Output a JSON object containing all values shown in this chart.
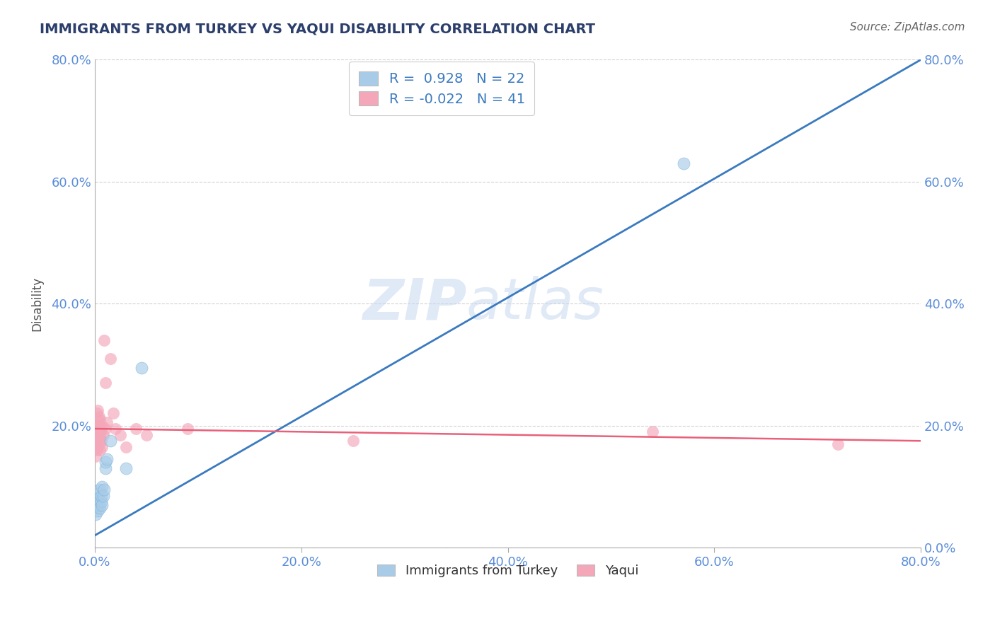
{
  "title": "IMMIGRANTS FROM TURKEY VS YAQUI DISABILITY CORRELATION CHART",
  "source_text": "Source: ZipAtlas.com",
  "xlabel": "",
  "ylabel": "Disability",
  "xlim": [
    0.0,
    0.8
  ],
  "ylim": [
    0.0,
    0.8
  ],
  "xticks": [
    0.0,
    0.2,
    0.4,
    0.6,
    0.8
  ],
  "yticks": [
    0.0,
    0.2,
    0.4,
    0.6,
    0.8
  ],
  "xticklabels": [
    "0.0%",
    "20.0%",
    "40.0%",
    "60.0%",
    "80.0%"
  ],
  "yticklabels": [
    "0.0%",
    "20.0%",
    "40.0%",
    "60.0%",
    "80.0%"
  ],
  "blue_R": 0.928,
  "blue_N": 22,
  "pink_R": -0.022,
  "pink_N": 41,
  "blue_color": "#a8cce8",
  "pink_color": "#f4a7b9",
  "blue_line_color": "#3a7abf",
  "pink_line_color": "#e8607a",
  "legend_blue_label": "Immigrants from Turkey",
  "legend_pink_label": "Yaqui",
  "watermark_zip": "ZIP",
  "watermark_atlas": "atlas",
  "blue_line_x": [
    0.0,
    0.8
  ],
  "blue_line_y": [
    0.02,
    0.8
  ],
  "pink_line_x": [
    0.0,
    0.8
  ],
  "pink_line_y": [
    0.195,
    0.175
  ],
  "blue_scatter_x": [
    0.001,
    0.002,
    0.002,
    0.003,
    0.003,
    0.004,
    0.004,
    0.005,
    0.005,
    0.006,
    0.006,
    0.007,
    0.007,
    0.008,
    0.009,
    0.01,
    0.01,
    0.012,
    0.015,
    0.03,
    0.045,
    0.57
  ],
  "blue_scatter_y": [
    0.055,
    0.065,
    0.075,
    0.06,
    0.08,
    0.07,
    0.09,
    0.065,
    0.095,
    0.075,
    0.085,
    0.07,
    0.1,
    0.085,
    0.095,
    0.13,
    0.14,
    0.145,
    0.175,
    0.13,
    0.295,
    0.63
  ],
  "pink_scatter_x": [
    0.001,
    0.001,
    0.001,
    0.002,
    0.002,
    0.002,
    0.002,
    0.002,
    0.003,
    0.003,
    0.003,
    0.003,
    0.003,
    0.004,
    0.004,
    0.004,
    0.004,
    0.005,
    0.005,
    0.005,
    0.005,
    0.006,
    0.006,
    0.007,
    0.007,
    0.008,
    0.009,
    0.01,
    0.01,
    0.012,
    0.015,
    0.018,
    0.02,
    0.025,
    0.03,
    0.04,
    0.05,
    0.09,
    0.25,
    0.54,
    0.72
  ],
  "pink_scatter_y": [
    0.15,
    0.17,
    0.185,
    0.16,
    0.175,
    0.19,
    0.2,
    0.22,
    0.165,
    0.18,
    0.195,
    0.21,
    0.225,
    0.17,
    0.185,
    0.2,
    0.215,
    0.16,
    0.18,
    0.195,
    0.21,
    0.175,
    0.19,
    0.165,
    0.2,
    0.185,
    0.34,
    0.195,
    0.27,
    0.205,
    0.31,
    0.22,
    0.195,
    0.185,
    0.165,
    0.195,
    0.185,
    0.195,
    0.175,
    0.19,
    0.17
  ],
  "grid_color": "#cccccc",
  "background_color": "#ffffff",
  "title_color": "#2c3e6b",
  "tick_color": "#5b8dd9",
  "right_ytick_color": "#5b8dd9"
}
